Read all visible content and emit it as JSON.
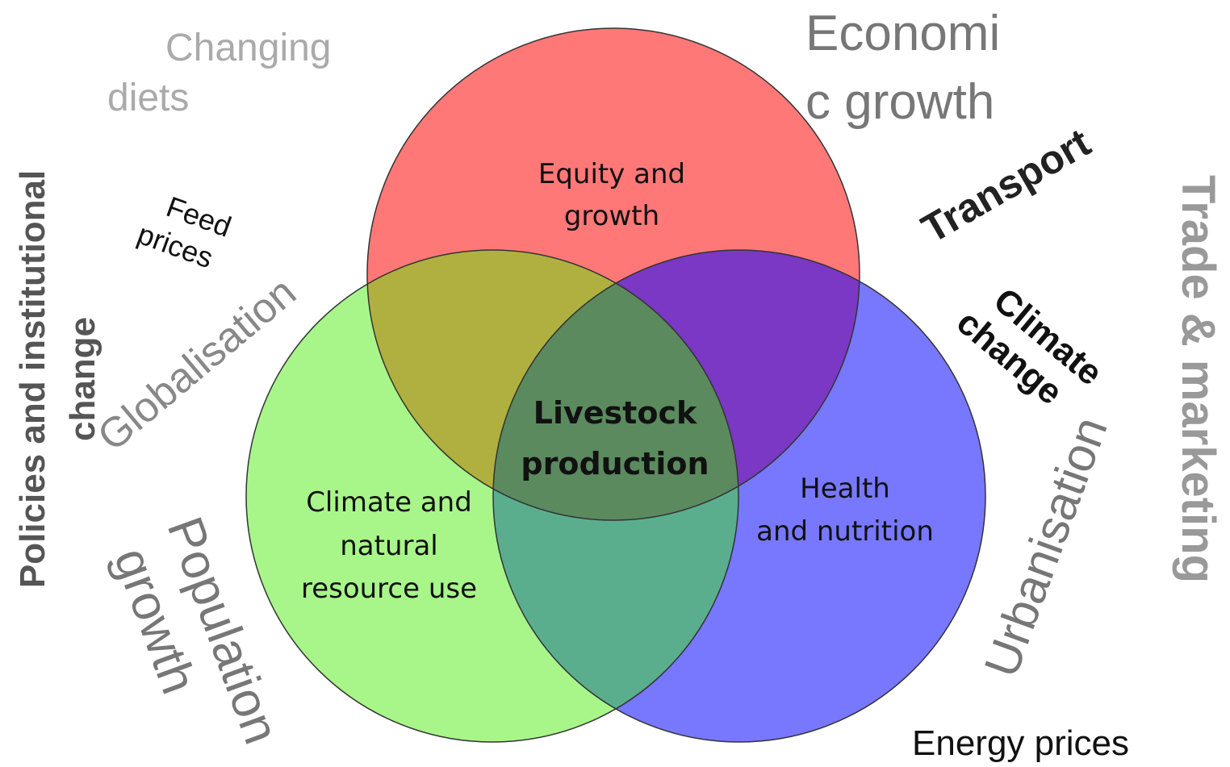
{
  "circles": [
    {
      "label_lines": [
        "Equity and",
        "growth"
      ]
    },
    {
      "label_lines": [
        "Climate and",
        "natural",
        "resource use"
      ]
    },
    {
      "label_lines": [
        "Health",
        "and nutrition"
      ]
    }
  ],
  "center_lines": [
    "Livestock",
    "production"
  ],
  "drivers": [
    {
      "lines": [
        "Changing",
        "diets"
      ]
    },
    {
      "lines": [
        "Economi",
        "c growth"
      ]
    },
    {
      "lines": [
        "Trade & marketing"
      ]
    },
    {
      "lines": [
        "Transport"
      ]
    },
    {
      "lines": [
        "Climate",
        "change"
      ]
    },
    {
      "lines": [
        "Urbanisation"
      ]
    },
    {
      "lines": [
        "Energy prices"
      ]
    },
    {
      "lines": [
        "Population",
        "growth"
      ]
    },
    {
      "lines": [
        "Policies and institutional",
        "change"
      ]
    },
    {
      "lines": [
        "Globalisation"
      ]
    },
    {
      "lines": [
        "Feed",
        "prices"
      ]
    }
  ]
}
